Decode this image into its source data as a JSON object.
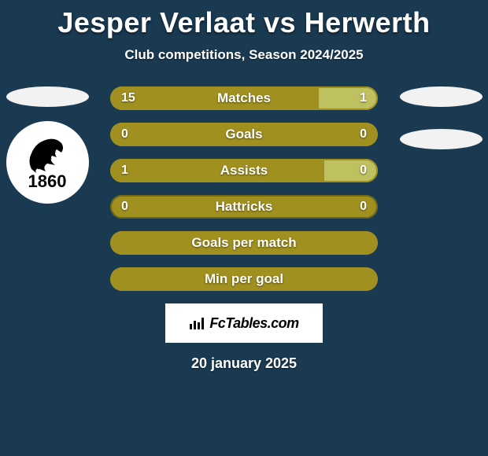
{
  "title": "Jesper Verlaat vs Herwerth",
  "subtitle": "Club competitions, Season 2024/2025",
  "date": "20 january 2025",
  "footer_brand": "FcTables.com",
  "colors": {
    "background": "#1a3a52",
    "left_accent": "#a09020",
    "right_accent_light": "#bfc060",
    "right_accent_dark": "#706818"
  },
  "left_crest_year": "1860",
  "stats": [
    {
      "label": "Matches",
      "left_value": "15",
      "right_value": "1",
      "left_fill_pct": 78,
      "right_fill_pct": 22,
      "right_color": "#bfc060",
      "border_color": "#a09020"
    },
    {
      "label": "Goals",
      "left_value": "0",
      "right_value": "0",
      "left_fill_pct": 100,
      "right_fill_pct": 0,
      "right_color": "#bfc060",
      "border_color": "#a09020"
    },
    {
      "label": "Assists",
      "left_value": "1",
      "right_value": "0",
      "left_fill_pct": 80,
      "right_fill_pct": 20,
      "right_color": "#bfc060",
      "border_color": "#a09020"
    },
    {
      "label": "Hattricks",
      "left_value": "0",
      "right_value": "0",
      "left_fill_pct": 100,
      "right_fill_pct": 0,
      "right_color": "#706818",
      "border_color": "#706818"
    },
    {
      "label": "Goals per match",
      "left_value": "",
      "right_value": "",
      "left_fill_pct": 100,
      "right_fill_pct": 0,
      "right_color": "#bfc060",
      "border_color": "#a09020"
    },
    {
      "label": "Min per goal",
      "left_value": "",
      "right_value": "",
      "left_fill_pct": 100,
      "right_fill_pct": 0,
      "right_color": "#bfc060",
      "border_color": "#a09020"
    }
  ]
}
